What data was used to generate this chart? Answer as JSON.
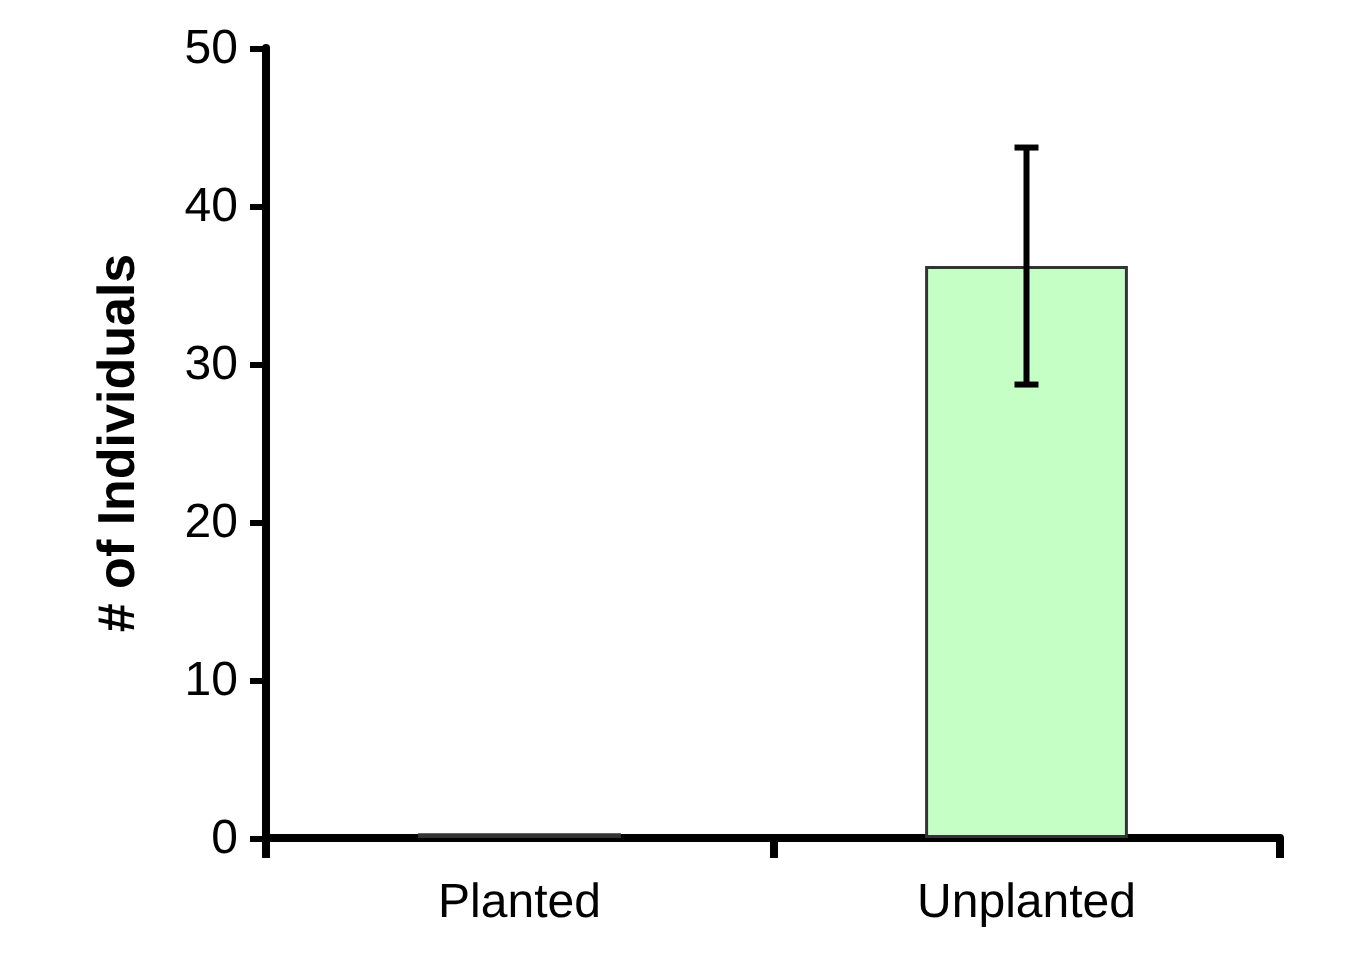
{
  "chart_data": {
    "type": "bar",
    "ylabel": "# of Individuals",
    "categories": [
      "Planted",
      "Unplanted"
    ],
    "values": [
      0.3,
      36.2
    ],
    "errors": [
      null,
      7.5
    ],
    "color": "#c6ffc6",
    "ylim": [
      0,
      50
    ],
    "yticks": [
      0,
      10,
      20,
      30,
      40,
      50
    ],
    "grid": false
  }
}
